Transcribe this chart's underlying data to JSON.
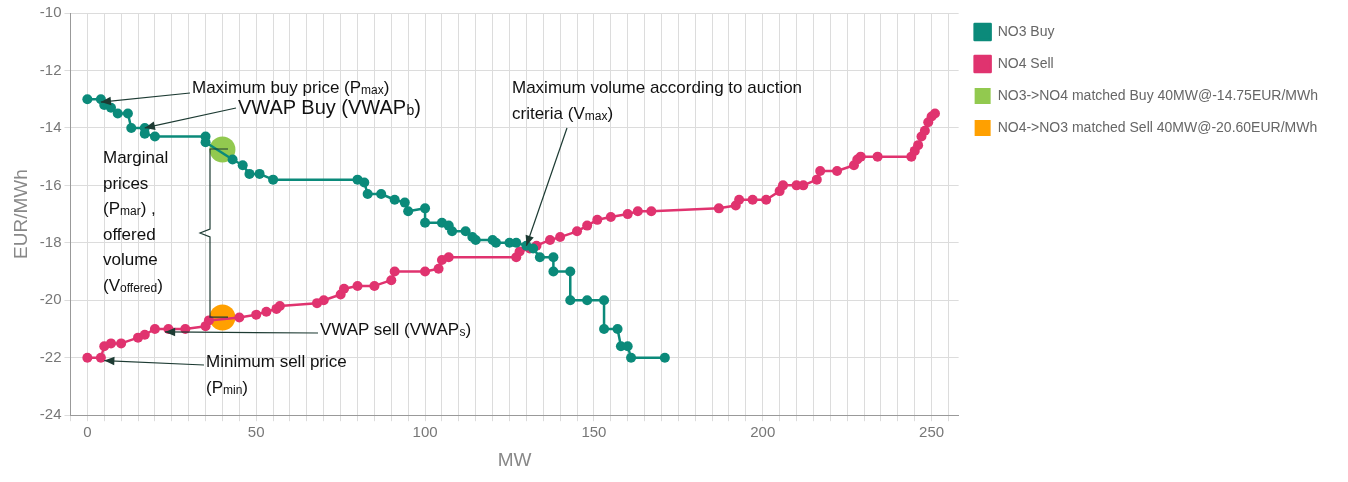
{
  "chart_data": {
    "type": "line",
    "xlabel": "MW",
    "ylabel": "EUR/MWh",
    "xlim": [
      -5,
      258
    ],
    "ylim": [
      -24,
      -10
    ],
    "xticks": [
      {
        "value": -5,
        "label": null
      },
      0,
      {
        "value": 5,
        "label": null
      },
      {
        "value": 10,
        "label": null
      },
      {
        "value": 15,
        "label": null
      },
      {
        "value": 20,
        "label": null
      },
      {
        "value": 25,
        "label": null
      },
      {
        "value": 30,
        "label": null
      },
      {
        "value": 35,
        "label": null
      },
      {
        "value": 40,
        "label": null
      },
      {
        "value": 45,
        "label": null
      },
      50,
      {
        "value": 55,
        "label": null
      },
      {
        "value": 60,
        "label": null
      },
      {
        "value": 65,
        "label": null
      },
      {
        "value": 70,
        "label": null
      },
      {
        "value": 75,
        "label": null
      },
      {
        "value": 80,
        "label": null
      },
      {
        "value": 85,
        "label": null
      },
      {
        "value": 90,
        "label": null
      },
      {
        "value": 95,
        "label": null
      },
      100,
      {
        "value": 105,
        "label": null
      },
      {
        "value": 110,
        "label": null
      },
      {
        "value": 115,
        "label": null
      },
      {
        "value": 120,
        "label": null
      },
      {
        "value": 125,
        "label": null
      },
      {
        "value": 130,
        "label": null
      },
      {
        "value": 135,
        "label": null
      },
      {
        "value": 140,
        "label": null
      },
      {
        "value": 145,
        "label": null
      },
      150,
      {
        "value": 155,
        "label": null
      },
      {
        "value": 160,
        "label": null
      },
      {
        "value": 165,
        "label": null
      },
      {
        "value": 170,
        "label": null
      },
      {
        "value": 175,
        "label": null
      },
      {
        "value": 180,
        "label": null
      },
      {
        "value": 185,
        "label": null
      },
      {
        "value": 190,
        "label": null
      },
      {
        "value": 195,
        "label": null
      },
      200,
      {
        "value": 205,
        "label": null
      },
      {
        "value": 210,
        "label": null
      },
      {
        "value": 215,
        "label": null
      },
      {
        "value": 220,
        "label": null
      },
      {
        "value": 225,
        "label": null
      },
      {
        "value": 230,
        "label": null
      },
      {
        "value": 235,
        "label": null
      },
      {
        "value": 240,
        "label": null
      },
      {
        "value": 245,
        "label": null
      },
      250,
      {
        "value": 255,
        "label": null
      }
    ],
    "yticks": [
      -24,
      -22,
      -20,
      -18,
      -16,
      -14,
      -12,
      -10
    ],
    "grid": true,
    "legend": "right",
    "marker": "circle",
    "line_style": "solid",
    "series": [
      {
        "name": "NO3 Buy",
        "color": "#0b8a7a",
        "x": [
          0,
          4,
          5,
          7,
          9,
          12,
          13,
          17,
          17,
          20,
          35,
          35,
          43,
          46,
          48,
          51,
          55,
          80,
          82,
          83,
          87,
          91,
          94,
          95,
          100,
          100,
          105,
          107,
          108,
          112,
          114,
          115,
          120,
          121,
          125,
          127,
          130,
          132,
          134,
          138,
          138,
          143,
          143,
          148,
          153,
          153,
          157,
          158,
          160,
          161,
          171
        ],
        "values": [
          -13,
          -13,
          -13.2,
          -13.3,
          -13.5,
          -13.5,
          -14,
          -14,
          -14.2,
          -14.3,
          -14.3,
          -14.5,
          -15.1,
          -15.3,
          -15.6,
          -15.6,
          -15.8,
          -15.8,
          -15.9,
          -16.3,
          -16.3,
          -16.5,
          -16.6,
          -16.9,
          -16.8,
          -17.3,
          -17.3,
          -17.4,
          -17.6,
          -17.6,
          -17.8,
          -17.9,
          -17.9,
          -18,
          -18,
          -18,
          -18.1,
          -18.2,
          -18.5,
          -18.5,
          -19,
          -19,
          -20,
          -20,
          -20,
          -21,
          -21,
          -21.6,
          -21.6,
          -22,
          -22
        ]
      },
      {
        "name": "NO4 Sell",
        "color": "#e0336f",
        "x": [
          0,
          4,
          5,
          7,
          10,
          15,
          17,
          20,
          24,
          29,
          35,
          36,
          45,
          50,
          53,
          56,
          57,
          68,
          70,
          75,
          76,
          80,
          85,
          90,
          91,
          100,
          104,
          105,
          107,
          127,
          128,
          131,
          133,
          137,
          140,
          145,
          148,
          151,
          155,
          160,
          163,
          167,
          187,
          192,
          193,
          197,
          201,
          205,
          206,
          210,
          212,
          216,
          217,
          222,
          227,
          228,
          229,
          234,
          244,
          245,
          246,
          247,
          248,
          249,
          250,
          251
        ],
        "values": [
          -22,
          -22,
          -21.6,
          -21.5,
          -21.5,
          -21.3,
          -21.2,
          -21,
          -21,
          -21,
          -20.9,
          -20.7,
          -20.6,
          -20.5,
          -20.4,
          -20.3,
          -20.2,
          -20.1,
          -20,
          -19.8,
          -19.6,
          -19.5,
          -19.5,
          -19.3,
          -19,
          -19,
          -18.9,
          -18.6,
          -18.5,
          -18.5,
          -18.3,
          -18.2,
          -18.1,
          -17.9,
          -17.8,
          -17.6,
          -17.4,
          -17.2,
          -17.1,
          -17,
          -16.9,
          -16.9,
          -16.8,
          -16.7,
          -16.5,
          -16.5,
          -16.5,
          -16.2,
          -16,
          -16,
          -16,
          -15.8,
          -15.5,
          -15.5,
          -15.3,
          -15.1,
          -15,
          -15,
          -15,
          -14.8,
          -14.6,
          -14.3,
          -14.1,
          -13.8,
          -13.6,
          -13.5
        ]
      },
      {
        "name": "NO3->NO4 matched Buy 40MW@-14.75EUR/MWh",
        "type": "scatter",
        "color": "#92c94f",
        "x": [
          40
        ],
        "values": [
          -14.75
        ]
      },
      {
        "name": "NO4->NO3 matched Sell 40MW@-20.60EUR/MWh",
        "type": "scatter",
        "color": "#ffa000",
        "x": [
          40
        ],
        "values": [
          -20.6
        ]
      }
    ],
    "annotations": [
      {
        "text": "Maximum buy price (P$_{max}$)",
        "x": 4,
        "y": -13.1
      },
      {
        "text": "VWAP Buy (VWAP$_{b}$)",
        "x": 17,
        "y": -14
      },
      "Marginal prices (P$_{mar}$) , offered volume (V$_{offered}$)",
      {
        "text": "VWAP sell (VWAP$_{s}$)",
        "x": 23,
        "y": -21.1
      },
      {
        "text": "Minimum sell price (P$_{min}$)",
        "x": 5,
        "y": -22.1
      },
      {
        "text": "Maximum volume according to auction criteria (V$_{max}$)",
        "x": 130,
        "y": -18.1
      }
    ]
  }
}
